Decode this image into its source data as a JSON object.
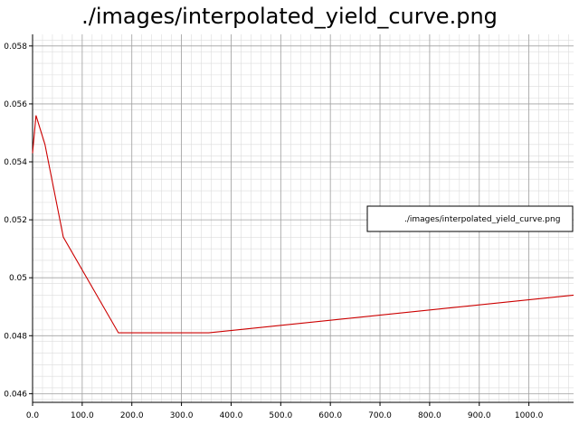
{
  "chart_data": {
    "type": "line",
    "title": "./images/interpolated_yield_curve.png",
    "xlabel": "",
    "ylabel": "",
    "xlim": [
      0,
      1090
    ],
    "ylim": [
      0.0457,
      0.0584
    ],
    "grid": true,
    "minor_grid": true,
    "legend": {
      "position": "right",
      "entries": [
        "./images/interpolated_yield_curve.png"
      ]
    },
    "x_ticks": [
      {
        "value": 0,
        "label": "0.0"
      },
      {
        "value": 100,
        "label": "100.0"
      },
      {
        "value": 200,
        "label": "200.0"
      },
      {
        "value": 300,
        "label": "300.0"
      },
      {
        "value": 400,
        "label": "400.0"
      },
      {
        "value": 500,
        "label": "500.0"
      },
      {
        "value": 600,
        "label": "600.0"
      },
      {
        "value": 700,
        "label": "700.0"
      },
      {
        "value": 800,
        "label": "800.0"
      },
      {
        "value": 900,
        "label": "900.0"
      },
      {
        "value": 1000,
        "label": "1000.0"
      }
    ],
    "y_ticks": [
      {
        "value": 0.046,
        "label": "0.046"
      },
      {
        "value": 0.048,
        "label": "0.048"
      },
      {
        "value": 0.05,
        "label": "0.05"
      },
      {
        "value": 0.052,
        "label": "0.052"
      },
      {
        "value": 0.054,
        "label": "0.054"
      },
      {
        "value": 0.056,
        "label": "0.056"
      },
      {
        "value": 0.058,
        "label": "0.058"
      }
    ],
    "series": [
      {
        "name": "./images/interpolated_yield_curve.png",
        "color": "#cc0000",
        "x": [
          0,
          7,
          25,
          62,
          173,
          355,
          1090
        ],
        "y": [
          0.0543,
          0.0556,
          0.0546,
          0.0514,
          0.0481,
          0.0481,
          0.0494
        ]
      }
    ]
  }
}
